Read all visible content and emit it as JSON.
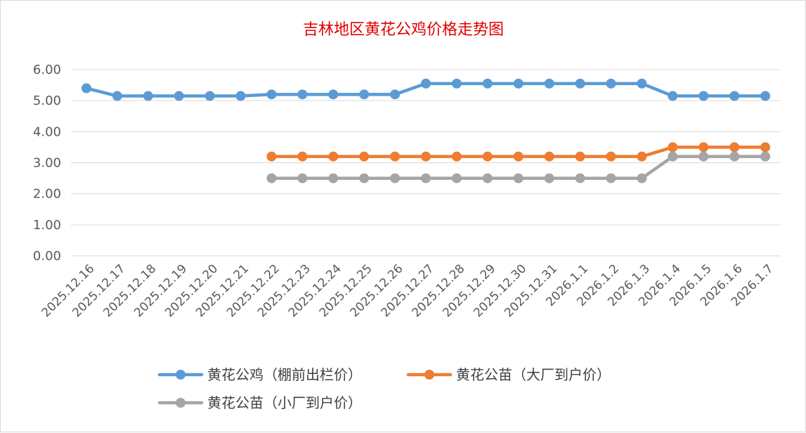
{
  "chart_data": {
    "type": "line",
    "title": "吉林地区黄花公鸡价格走势图",
    "xlabel": "",
    "ylabel": "",
    "ylim": [
      0,
      6
    ],
    "yticks": [
      "0.00",
      "1.00",
      "2.00",
      "3.00",
      "4.00",
      "5.00",
      "6.00"
    ],
    "grid": "horizontal",
    "legend_position": "bottom",
    "categories": [
      "2025.12.16",
      "2025.12.17",
      "2025.12.18",
      "2025.12.19",
      "2025.12.20",
      "2025.12.21",
      "2025.12.22",
      "2025.12.23",
      "2025.12.24",
      "2025.12.25",
      "2025.12.26",
      "2025.12.27",
      "2025.12.28",
      "2025.12.29",
      "2025.12.30",
      "2025.12.31",
      "2026.1.1",
      "2026.1.2",
      "2026.1.3",
      "2026.1.4",
      "2026.1.5",
      "2026.1.6",
      "2026.1.7"
    ],
    "series": [
      {
        "name": "黄花公鸡（棚前出栏价）",
        "color": "#5b9bd5",
        "values": [
          5.4,
          5.15,
          5.15,
          5.15,
          5.15,
          5.15,
          5.2,
          5.2,
          5.2,
          5.2,
          5.2,
          5.55,
          5.55,
          5.55,
          5.55,
          5.55,
          5.55,
          5.55,
          5.55,
          5.15,
          5.15,
          5.15,
          5.15
        ]
      },
      {
        "name": "黄花公苗（大厂到户价）",
        "color": "#ed7d31",
        "values": [
          null,
          null,
          null,
          null,
          null,
          null,
          3.2,
          3.2,
          3.2,
          3.2,
          3.2,
          3.2,
          3.2,
          3.2,
          3.2,
          3.2,
          3.2,
          3.2,
          3.2,
          3.5,
          3.5,
          3.5,
          3.5
        ]
      },
      {
        "name": "黄花公苗（小厂到户价）",
        "color": "#a5a5a5",
        "values": [
          null,
          null,
          null,
          null,
          null,
          null,
          2.5,
          2.5,
          2.5,
          2.5,
          2.5,
          2.5,
          2.5,
          2.5,
          2.5,
          2.5,
          2.5,
          2.5,
          2.5,
          3.2,
          3.2,
          3.2,
          3.2
        ]
      }
    ]
  }
}
